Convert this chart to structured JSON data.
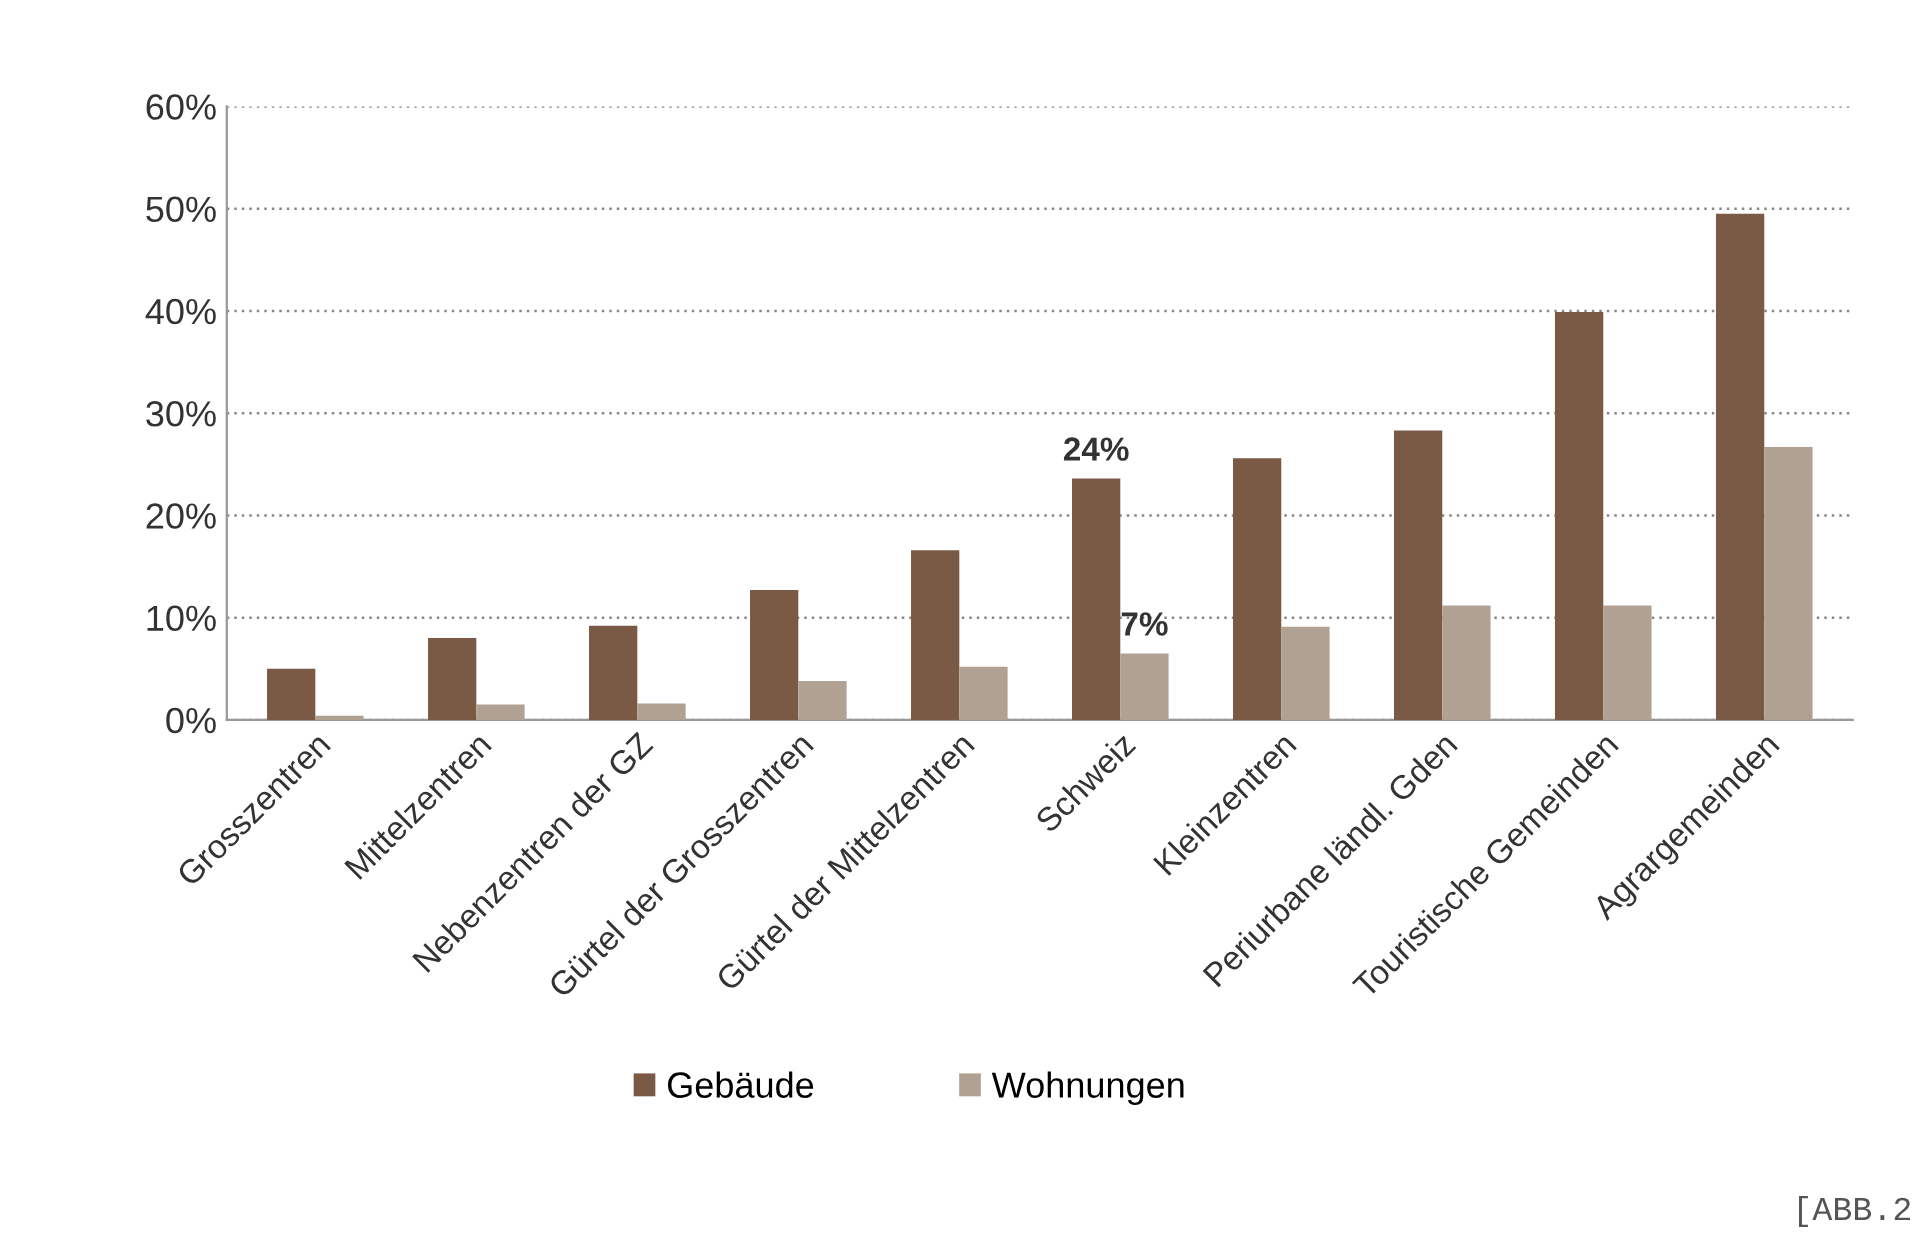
{
  "chart_data": {
    "type": "bar",
    "categories": [
      "Grosszentren",
      "Mittelzentren",
      "Nebenzentren der GZ",
      "Gürtel der Grosszentren",
      "Gürtel der Mittelzentren",
      "Schweiz",
      "Kleinzentren",
      "Periurbane ländl. Gden",
      "Touristische Gemeinden",
      "Agrargemeinden"
    ],
    "series": [
      {
        "name": "Gebäude",
        "color": "#7a5a44",
        "values": [
          5.0,
          8.0,
          9.2,
          12.7,
          16.6,
          23.6,
          25.6,
          28.3,
          39.9,
          49.5
        ],
        "value_labels": [
          null,
          null,
          null,
          null,
          null,
          "24%",
          null,
          null,
          null,
          null
        ]
      },
      {
        "name": "Wohnungen",
        "color": "#b0a192",
        "values": [
          0.4,
          1.5,
          1.6,
          3.8,
          5.2,
          6.5,
          9.1,
          11.2,
          11.2,
          26.7
        ],
        "value_labels": [
          null,
          null,
          null,
          null,
          null,
          "7%",
          null,
          null,
          null,
          null
        ]
      }
    ],
    "ylim": [
      0,
      60
    ],
    "yticks": [
      {
        "value": 0,
        "label": "0%"
      },
      {
        "value": 10,
        "label": "10%"
      },
      {
        "value": 20,
        "label": "20%"
      },
      {
        "value": 30,
        "label": "30%"
      },
      {
        "value": 40,
        "label": "40%"
      },
      {
        "value": 50,
        "label": "50%"
      },
      {
        "value": 60,
        "label": "60%"
      }
    ],
    "grid": "y",
    "legend": "bottom",
    "annotations": [
      "[ABB.2"
    ]
  }
}
